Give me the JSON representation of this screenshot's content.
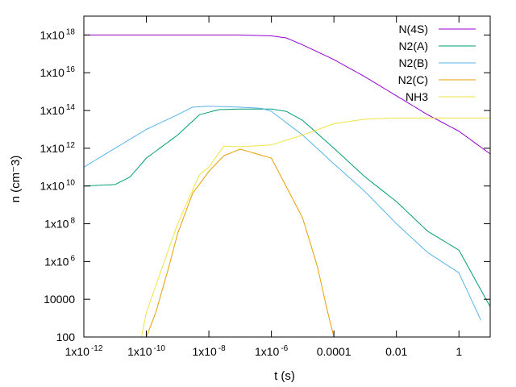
{
  "chart_data": {
    "type": "line",
    "xlabel": "t (s)",
    "ylabel": "n (cm⁻3)",
    "x_scale": "log",
    "y_scale": "log",
    "xlim": [
      1e-12,
      10
    ],
    "ylim": [
      100,
      1e+19
    ],
    "grid": false,
    "legend_position": "top-right",
    "x_ticks": [
      {
        "value": 1e-12,
        "label": "1x10",
        "sup": "-12"
      },
      {
        "value": 1e-10,
        "label": "1x10",
        "sup": "-10"
      },
      {
        "value": 1e-08,
        "label": "1x10",
        "sup": "-8"
      },
      {
        "value": 1e-06,
        "label": "1x10",
        "sup": "-6"
      },
      {
        "value": 0.0001,
        "label": "0.0001",
        "sup": ""
      },
      {
        "value": 0.01,
        "label": "0.01",
        "sup": ""
      },
      {
        "value": 1,
        "label": "1",
        "sup": ""
      }
    ],
    "y_ticks": [
      {
        "value": 100,
        "label": "100",
        "sup": ""
      },
      {
        "value": 10000,
        "label": "10000",
        "sup": ""
      },
      {
        "value": 1000000.0,
        "label": "1x10",
        "sup": "6"
      },
      {
        "value": 100000000.0,
        "label": "1x10",
        "sup": "8"
      },
      {
        "value": 10000000000.0,
        "label": "1x10",
        "sup": "10"
      },
      {
        "value": 1000000000000.0,
        "label": "1x10",
        "sup": "12"
      },
      {
        "value": 100000000000000.0,
        "label": "1x10",
        "sup": "14"
      },
      {
        "value": 1e+16,
        "label": "1x10",
        "sup": "16"
      },
      {
        "value": 1e+18,
        "label": "1x10",
        "sup": "18"
      }
    ],
    "series": [
      {
        "name": "N(4S)",
        "color": "#9400d3",
        "points": [
          [
            1e-12,
            1e+18
          ],
          [
            1e-07,
            1e+18
          ],
          [
            1e-06,
            9e+17
          ],
          [
            3e-06,
            7e+17
          ],
          [
            1e-05,
            3e+17
          ],
          [
            0.0001,
            5e+16
          ],
          [
            0.001,
            6000000000000000.0
          ],
          [
            0.01,
            600000000000000.0
          ],
          [
            0.1,
            60000000000000.0
          ],
          [
            1,
            8000000000000.0
          ],
          [
            10,
            500000000000.0
          ]
        ]
      },
      {
        "name": "N2(A)",
        "color": "#009e73",
        "points": [
          [
            1e-12,
            10000000000.0
          ],
          [
            1e-11,
            12000000000.0
          ],
          [
            3e-11,
            30000000000.0
          ],
          [
            1e-10,
            300000000000.0
          ],
          [
            1e-09,
            5000000000000.0
          ],
          [
            5e-09,
            60000000000000.0
          ],
          [
            2e-08,
            110000000000000.0
          ],
          [
            1e-07,
            120000000000000.0
          ],
          [
            1e-06,
            120000000000000.0
          ],
          [
            3e-06,
            90000000000000.0
          ],
          [
            1e-05,
            30000000000000.0
          ],
          [
            0.0001,
            1000000000000.0
          ],
          [
            0.001,
            30000000000.0
          ],
          [
            0.01,
            1500000000.0
          ],
          [
            0.1,
            40000000.0
          ],
          [
            1,
            4000000.0
          ],
          [
            10,
            4000.0
          ]
        ]
      },
      {
        "name": "N2(B)",
        "color": "#56b4e9",
        "points": [
          [
            1e-12,
            100000000000.0
          ],
          [
            1e-11,
            1000000000000.0
          ],
          [
            1e-10,
            10000000000000.0
          ],
          [
            1e-09,
            60000000000000.0
          ],
          [
            3e-09,
            150000000000000.0
          ],
          [
            1e-08,
            170000000000000.0
          ],
          [
            1e-07,
            150000000000000.0
          ],
          [
            5e-07,
            130000000000000.0
          ],
          [
            1e-06,
            90000000000000.0
          ],
          [
            1e-05,
            5000000000000.0
          ],
          [
            0.0001,
            150000000000.0
          ],
          [
            0.001,
            5000000000.0
          ],
          [
            0.01,
            100000000.0
          ],
          [
            0.1,
            3000000.0
          ],
          [
            1,
            250000.0
          ],
          [
            5,
            800
          ]
        ]
      },
      {
        "name": "N2(C)",
        "color": "#e69f00",
        "points": [
          [
            1e-10,
            100
          ],
          [
            2e-10,
            2000.0
          ],
          [
            5e-10,
            400000.0
          ],
          [
            1e-09,
            30000000.0
          ],
          [
            3e-09,
            4000000000.0
          ],
          [
            1e-08,
            60000000000.0
          ],
          [
            3e-08,
            400000000000.0
          ],
          [
            1e-07,
            900000000000.0
          ],
          [
            1e-06,
            300000000000.0
          ],
          [
            1e-05,
            200000000.0
          ],
          [
            3e-05,
            500000.0
          ],
          [
            6e-05,
            3000.0
          ],
          [
            0.0001,
            100
          ]
        ]
      },
      {
        "name": "NH3",
        "color": "#f0e442",
        "points": [
          [
            7e-11,
            100
          ],
          [
            1e-10,
            2000.0
          ],
          [
            1e-09,
            100000000.0
          ],
          [
            5e-09,
            40000000000.0
          ],
          [
            1e-08,
            100000000000.0
          ],
          [
            3e-08,
            1300000000000.0
          ],
          [
            1e-07,
            1200000000000.0
          ],
          [
            1e-06,
            1500000000000.0
          ],
          [
            1e-05,
            5000000000000.0
          ],
          [
            0.0001,
            20000000000000.0
          ],
          [
            0.001,
            35000000000000.0
          ],
          [
            0.01,
            40000000000000.0
          ],
          [
            10,
            40000000000000.0
          ]
        ]
      }
    ]
  }
}
